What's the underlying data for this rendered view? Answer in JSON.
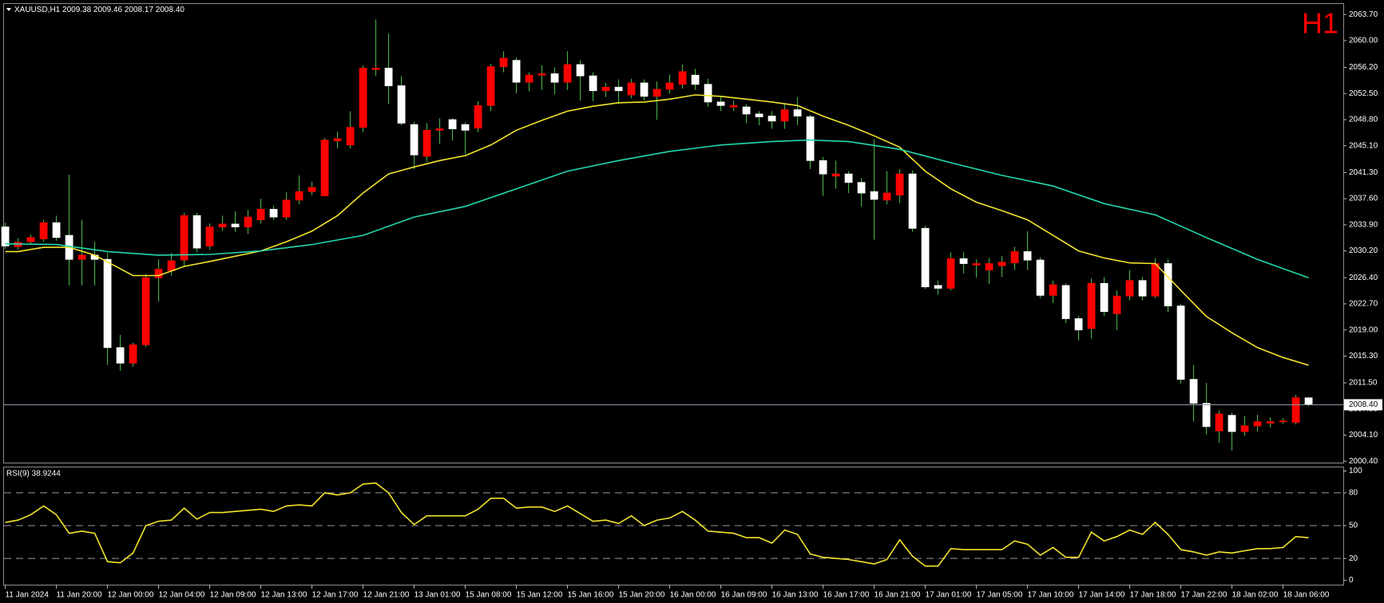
{
  "chart_data": [
    {
      "type": "candlestick",
      "title": "XAUUSD,H1  2009.38 2009.46 2008.17 2008.40",
      "timeframe_label": "H1",
      "up_color": "#ff0000",
      "down_color": "#ffffff",
      "wick_color": "#4fbf4f",
      "categories": [
        "11 Jan 2024",
        null,
        null,
        null,
        "11 Jan 20:00",
        null,
        null,
        null,
        "12 Jan 00:00",
        null,
        null,
        null,
        "12 Jan 04:00",
        null,
        null,
        null,
        "12 Jan 09:00",
        null,
        null,
        null,
        "12 Jan 13:00",
        null,
        null,
        null,
        "12 Jan 17:00",
        null,
        null,
        null,
        "12 Jan 21:00",
        null,
        null,
        null,
        "13 Jan 01:00",
        null,
        null,
        null,
        "15 Jan 08:00",
        null,
        null,
        null,
        "15 Jan 12:00",
        null,
        null,
        null,
        "15 Jan 16:00",
        null,
        null,
        null,
        "15 Jan 20:00",
        null,
        null,
        null,
        "16 Jan 00:00",
        null,
        null,
        null,
        "16 Jan 09:00",
        null,
        null,
        null,
        "16 Jan 13:00",
        null,
        null,
        null,
        "16 Jan 17:00",
        null,
        null,
        null,
        "16 Jan 21:00",
        null,
        null,
        null,
        "17 Jan 01:00",
        null,
        null,
        null,
        "17 Jan 05:00",
        null,
        null,
        null,
        "17 Jan 10:00",
        null,
        null,
        null,
        "17 Jan 14:00",
        null,
        null,
        null,
        "17 Jan 18:00",
        null,
        null,
        null,
        "17 Jan 22:00",
        null,
        null,
        null,
        "18 Jan 02:00",
        null,
        null,
        null,
        "18 Jan 06:00",
        null,
        null
      ],
      "open": [
        2033.6,
        2030.8,
        2031.5,
        2031.9,
        2034.2,
        2032.4,
        2029.0,
        2029.6,
        2029.0,
        2016.5,
        2014.3,
        2016.9,
        2026.4,
        2027.4,
        2028.9,
        2035.2,
        2030.9,
        2033.6,
        2034.0,
        2033.6,
        2034.6,
        2036.1,
        2035.0,
        2037.4,
        2038.6,
        2038.0,
        2045.8,
        2045.2,
        2047.7,
        2055.9,
        2056.1,
        2053.6,
        2048.1,
        2043.6,
        2047.3,
        2048.8,
        2048.1,
        2047.6,
        2050.8,
        2056.3,
        2057.2,
        2054.1,
        2055.1,
        2055.3,
        2054.1,
        2056.6,
        2055.0,
        2052.9,
        2053.4,
        2052.3,
        2054.0,
        2052.1,
        2053.1,
        2053.8,
        2055.1,
        2053.8,
        2051.3,
        2050.6,
        2050.6,
        2049.6,
        2049.3,
        2048.6,
        2050.2,
        2049.2,
        2043.0,
        2040.8,
        2041.1,
        2039.9,
        2038.6,
        2037.4,
        2038.1,
        2041.1,
        2033.4,
        2025.3,
        2024.9,
        2029.1,
        2028.2,
        2027.5,
        2028.1,
        2028.5,
        2030.1,
        2028.9,
        2023.9,
        2025.3,
        2020.6,
        2019.2,
        2025.6,
        2021.3,
        2023.8,
        2026.0,
        2023.8,
        2028.4,
        2022.4,
        2012.0,
        2008.6,
        2004.7,
        2006.9,
        2004.6,
        2005.4,
        2005.8,
        2006.0,
        2005.9,
        2009.38
      ],
      "high": [
        2034.2,
        2032.0,
        2032.5,
        2034.6,
        2035.2,
        2041.0,
        2034.6,
        2031.5,
        2029.9,
        2018.3,
        2017.2,
        2026.9,
        2029.0,
        2029.9,
        2035.6,
        2035.6,
        2034.1,
        2035.2,
        2035.8,
        2036.0,
        2037.6,
        2036.6,
        2038.5,
        2040.9,
        2040.0,
        2046.2,
        2047.1,
        2050.0,
        2056.5,
        2063.0,
        2061.0,
        2055.0,
        2048.5,
        2048.3,
        2049.0,
        2049.0,
        2048.4,
        2051.4,
        2056.7,
        2058.5,
        2057.6,
        2055.5,
        2056.5,
        2056.2,
        2058.5,
        2057.2,
        2055.5,
        2054.0,
        2054.5,
        2054.6,
        2054.5,
        2054.2,
        2055.2,
        2056.6,
        2056.0,
        2054.6,
        2052.0,
        2051.5,
        2051.0,
        2050.0,
        2050.0,
        2051.0,
        2052.0,
        2049.5,
        2043.5,
        2043.0,
        2041.5,
        2040.5,
        2046.0,
        2041.5,
        2041.8,
        2041.6,
        2033.8,
        2026.0,
        2030.0,
        2030.0,
        2029.0,
        2029.2,
        2029.5,
        2030.8,
        2033.0,
        2029.3,
        2026.0,
        2025.6,
        2021.0,
        2026.3,
        2026.5,
        2024.6,
        2027.5,
        2026.5,
        2029.2,
        2029.0,
        2022.7,
        2014.0,
        2011.5,
        2007.6,
        2007.3,
        2006.8,
        2007.0,
        2006.6,
        2006.5,
        2009.8,
        2009.46
      ],
      "low": [
        2030.5,
        2030.4,
        2031.2,
        2031.5,
        2031.6,
        2025.3,
        2025.3,
        2025.3,
        2014.0,
        2013.2,
        2013.8,
        2016.6,
        2023.0,
        2026.7,
        2028.0,
        2030.0,
        2030.4,
        2033.0,
        2032.9,
        2032.6,
        2034.1,
        2034.6,
        2034.6,
        2036.8,
        2038.1,
        2038.0,
        2044.7,
        2044.7,
        2047.0,
        2055.0,
        2051.0,
        2048.0,
        2041.8,
        2042.8,
        2045.4,
        2045.8,
        2043.9,
        2047.0,
        2050.0,
        2055.5,
        2052.5,
        2052.8,
        2053.0,
        2052.4,
        2053.0,
        2051.5,
        2051.4,
        2052.0,
        2051.0,
        2051.8,
        2051.5,
        2048.8,
        2052.5,
        2053.2,
        2053.0,
        2050.6,
        2050.0,
        2050.0,
        2048.3,
        2048.0,
        2047.5,
        2047.5,
        2048.0,
        2041.8,
        2038.0,
        2039.0,
        2038.4,
        2036.5,
        2031.8,
        2036.8,
        2037.0,
        2032.9,
        2024.8,
        2024.0,
        2024.6,
        2027.0,
        2026.4,
        2025.5,
        2026.5,
        2027.5,
        2027.5,
        2023.5,
        2022.8,
        2020.0,
        2017.5,
        2017.8,
        2021.0,
        2019.0,
        2023.2,
        2023.2,
        2023.5,
        2021.5,
        2011.4,
        2006.0,
        2004.2,
        2003.0,
        2001.9,
        2004.0,
        2004.6,
        2005.2,
        2005.7,
        2005.6,
        2008.17
      ],
      "close": [
        2030.9,
        2031.4,
        2032.1,
        2034.2,
        2032.1,
        2029.0,
        2029.6,
        2029.0,
        2016.5,
        2014.3,
        2016.9,
        2026.4,
        2027.6,
        2028.8,
        2035.2,
        2030.6,
        2033.6,
        2034.0,
        2033.6,
        2035.0,
        2036.1,
        2035.0,
        2037.4,
        2038.6,
        2039.2,
        2045.9,
        2046.1,
        2047.7,
        2056.1,
        2056.1,
        2053.6,
        2048.3,
        2043.8,
        2047.3,
        2047.5,
        2047.5,
        2047.3,
        2050.8,
        2056.3,
        2057.5,
        2054.1,
        2055.1,
        2055.3,
        2054.1,
        2056.6,
        2055.0,
        2052.9,
        2053.4,
        2052.9,
        2054.0,
        2052.1,
        2053.1,
        2054.0,
        2055.6,
        2053.8,
        2051.3,
        2050.8,
        2050.8,
        2049.6,
        2049.2,
        2048.6,
        2050.2,
        2049.3,
        2043.0,
        2041.1,
        2041.1,
        2039.9,
        2038.4,
        2037.5,
        2038.4,
        2041.1,
        2033.4,
        2025.1,
        2024.9,
        2029.1,
        2028.4,
        2028.4,
        2028.4,
        2028.6,
        2030.1,
        2028.9,
        2023.9,
        2025.4,
        2020.6,
        2019.0,
        2025.6,
        2021.6,
        2023.8,
        2026.0,
        2023.8,
        2028.4,
        2022.4,
        2012.0,
        2008.6,
        2005.3,
        2007.1,
        2004.6,
        2005.4,
        2006.0,
        2006.0,
        2006.1,
        2009.4,
        2008.4
      ],
      "series": [
        {
          "color": "#f2e52c",
          "x": [
            0,
            1,
            3,
            5,
            7,
            10,
            12,
            14,
            16,
            20,
            22,
            24,
            26,
            28,
            30,
            32,
            34,
            36,
            38,
            40,
            42,
            44,
            46,
            48,
            50,
            52,
            54,
            56,
            58,
            60,
            62,
            64,
            66,
            68,
            70,
            72,
            74,
            76,
            78,
            80,
            82,
            84,
            86,
            88,
            90,
            92,
            94,
            96,
            98,
            100,
            102
          ],
          "values": [
            2030.1,
            2030.1,
            2030.7,
            2030.7,
            2029.6,
            2026.7,
            2026.7,
            2028.0,
            2028.7,
            2030.2,
            2031.5,
            2033.0,
            2035.2,
            2038.4,
            2041.1,
            2042.1,
            2043.0,
            2043.7,
            2045.2,
            2047.3,
            2048.7,
            2050.0,
            2050.7,
            2051.2,
            2051.3,
            2051.7,
            2052.3,
            2052.1,
            2051.7,
            2051.3,
            2050.8,
            2049.3,
            2048.0,
            2046.5,
            2044.9,
            2041.5,
            2039.0,
            2037.1,
            2035.9,
            2034.6,
            2032.4,
            2030.2,
            2029.2,
            2028.5,
            2028.4,
            2024.6,
            2020.9,
            2018.6,
            2016.5,
            2015.1,
            2014.0
          ]
        },
        {
          "color": "#22d8ae",
          "x": [
            0,
            4,
            8,
            12,
            16,
            20,
            24,
            28,
            32,
            36,
            40,
            44,
            48,
            52,
            56,
            60,
            63,
            66,
            70,
            74,
            78,
            82,
            86,
            90,
            94,
            98,
            102
          ],
          "values": [
            2031.2,
            2031.1,
            2030.1,
            2029.6,
            2029.7,
            2030.2,
            2031.1,
            2032.4,
            2035.0,
            2036.5,
            2039.0,
            2041.5,
            2043.0,
            2044.3,
            2045.2,
            2045.7,
            2045.9,
            2045.7,
            2044.6,
            2042.7,
            2040.9,
            2039.4,
            2036.9,
            2035.3,
            2032.1,
            2029.0,
            2026.4
          ]
        }
      ],
      "current_price": {
        "value": 2008.4,
        "label": "2008.40",
        "color": "#8a9aa8"
      },
      "ylim": [
        2000.2,
        2065.3
      ],
      "yticks": [
        {
          "value": 2063.7,
          "label": "2063.70"
        },
        {
          "value": 2060.0,
          "label": "2060.00"
        },
        {
          "value": 2056.2,
          "label": "2056.20"
        },
        {
          "value": 2052.5,
          "label": "2052.50"
        },
        {
          "value": 2048.8,
          "label": "2048.80"
        },
        {
          "value": 2045.1,
          "label": "2045.10"
        },
        {
          "value": 2041.3,
          "label": "2041.30"
        },
        {
          "value": 2037.6,
          "label": "2037.60"
        },
        {
          "value": 2033.9,
          "label": "2033.90"
        },
        {
          "value": 2030.2,
          "label": "2030.20"
        },
        {
          "value": 2026.4,
          "label": "2026.40"
        },
        {
          "value": 2022.7,
          "label": "2022.70"
        },
        {
          "value": 2019.0,
          "label": "2019.00"
        },
        {
          "value": 2015.3,
          "label": "2015.30"
        },
        {
          "value": 2011.5,
          "label": "2011.50"
        },
        {
          "value": 2007.8,
          "label": "2007.80"
        },
        {
          "value": 2004.1,
          "label": "2004.10"
        },
        {
          "value": 2000.4,
          "label": "2000.40"
        }
      ]
    },
    {
      "type": "line",
      "title": "RSI(9) 38.9244",
      "color": "#f2e52c",
      "values": [
        53,
        55,
        60,
        68,
        60,
        43,
        45,
        43,
        17,
        16,
        25,
        50,
        54,
        55,
        66,
        56,
        62,
        62,
        63,
        64,
        65,
        63,
        68,
        69,
        68,
        80,
        78,
        80,
        88,
        89,
        80,
        62,
        51,
        59,
        59,
        59,
        59,
        65,
        75,
        75,
        66,
        67,
        67,
        63,
        68,
        61,
        54,
        55,
        52,
        59,
        50,
        55,
        57,
        63,
        55,
        45,
        44,
        43,
        39,
        39,
        34,
        46,
        42,
        24,
        21,
        20,
        19,
        17,
        15,
        19,
        37,
        22,
        13,
        13,
        29,
        28,
        28,
        28,
        28,
        36,
        33,
        23,
        30,
        21,
        21,
        44,
        36,
        40,
        46,
        42,
        53,
        42,
        28,
        26,
        23,
        26,
        25,
        27,
        29,
        29,
        30,
        40,
        38.9244
      ],
      "ylim": [
        -4,
        104
      ],
      "yticks": [
        100,
        80,
        50,
        20,
        0
      ],
      "level_color": "#9a9a9a"
    }
  ]
}
